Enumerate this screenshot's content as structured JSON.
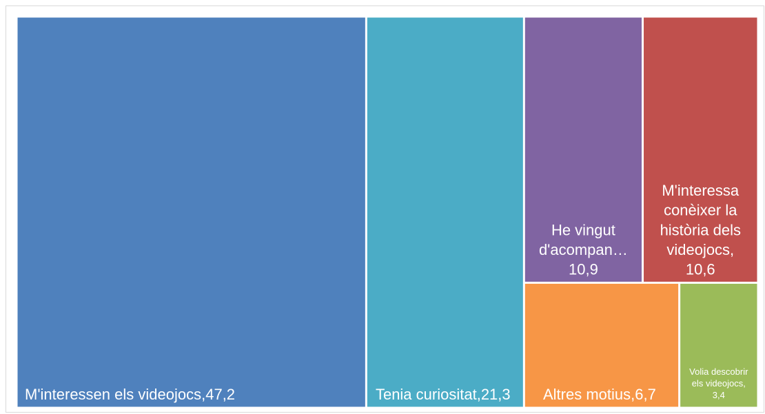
{
  "chart_data": {
    "type": "treemap",
    "categories": [
      "M'interessen els videojocs,",
      "Tenia curiositat,",
      "He vingut d'acompan…",
      "M'interessa conèixer la història dels videojocs,",
      "Altres motius,",
      "Volia descobrir els videojocs,"
    ],
    "values": [
      47.2,
      21.3,
      10.9,
      10.6,
      6.7,
      3.4
    ],
    "value_labels": [
      "47,2",
      "21,3",
      "10,9",
      "10,6",
      "6,7",
      "3,4"
    ],
    "colors": [
      "#4f81bd",
      "#4bacc6",
      "#8064a2",
      "#c0504d",
      "#f79646",
      "#9bbb59"
    ]
  }
}
